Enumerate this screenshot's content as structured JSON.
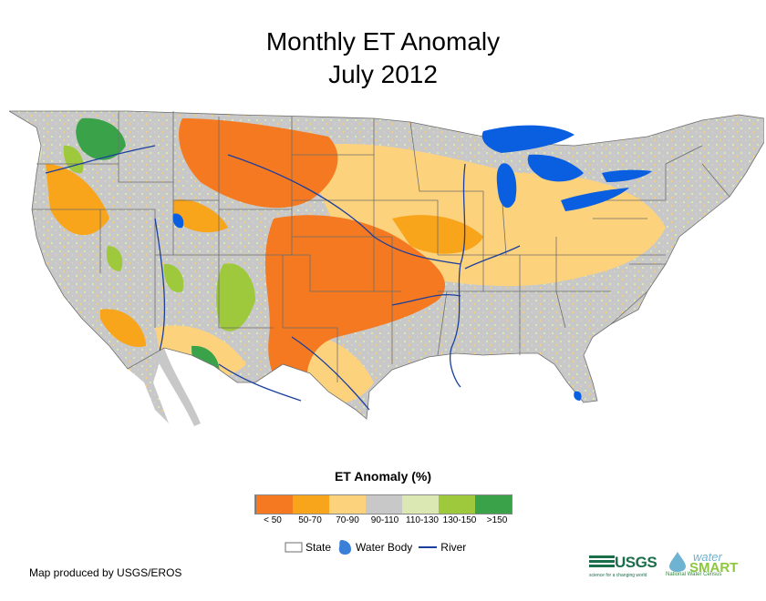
{
  "title": {
    "line1": "Monthly ET Anomaly",
    "line2": "July 2012"
  },
  "legend": {
    "title": "ET Anomaly (%)",
    "bins": [
      {
        "label": "< 50",
        "color": "#f47920"
      },
      {
        "label": "50-70",
        "color": "#f8a51c"
      },
      {
        "label": "70-90",
        "color": "#fdd27c"
      },
      {
        "label": "90-110",
        "color": "#c8c8c8"
      },
      {
        "label": "110-130",
        "color": "#dbe8b4"
      },
      {
        "label": "130-150",
        "color": "#9fc93c"
      },
      {
        "label": ">150",
        "color": "#3aa34a"
      }
    ],
    "items": {
      "state": "State",
      "water_body": "Water Body",
      "river": "River"
    }
  },
  "colors": {
    "water": "#0a5fe0",
    "river": "#1c3f9e",
    "state_border": "#6e6e6e"
  },
  "credit": "Map produced by USGS/EROS",
  "logos": {
    "usgs": "USGS",
    "usgs_tagline": "science for a changing world",
    "water": "water",
    "smart": "SMART",
    "census": "National Water Census"
  }
}
